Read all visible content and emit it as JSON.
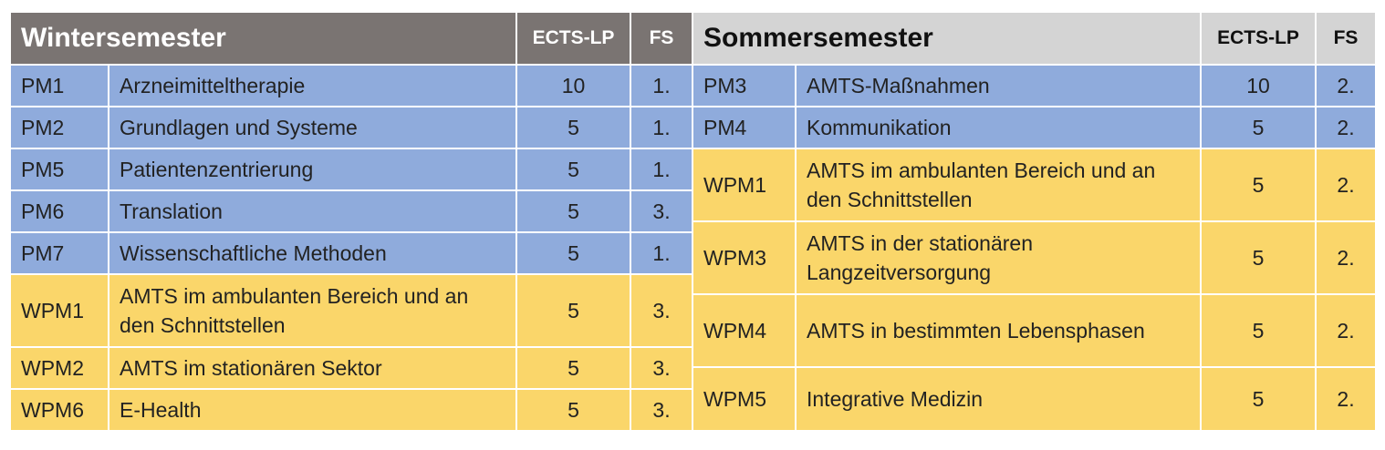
{
  "winter": {
    "title": "Wintersemester",
    "col_ects": "ECTS-LP",
    "col_fs": "FS",
    "rows": [
      {
        "code": "PM1",
        "name": "Arzneimitteltherapie",
        "ects": "10",
        "fs": "1.",
        "kind": "pm"
      },
      {
        "code": "PM2",
        "name": "Grundlagen und Systeme",
        "ects": "5",
        "fs": "1.",
        "kind": "pm"
      },
      {
        "code": "PM5",
        "name": "Patientenzentrierung",
        "ects": "5",
        "fs": "1.",
        "kind": "pm"
      },
      {
        "code": "PM6",
        "name": "Translation",
        "ects": "5",
        "fs": "3.",
        "kind": "pm"
      },
      {
        "code": "PM7",
        "name": "Wissenschaftliche Methoden",
        "ects": "5",
        "fs": "1.",
        "kind": "pm"
      },
      {
        "code": "WPM1",
        "name": "AMTS im ambulanten Bereich und an den Schnittstellen",
        "ects": "5",
        "fs": "3.",
        "kind": "wpm"
      },
      {
        "code": "WPM2",
        "name": "AMTS im stationären Sektor",
        "ects": "5",
        "fs": "3.",
        "kind": "wpm"
      },
      {
        "code": "WPM6",
        "name": "E-Health",
        "ects": "5",
        "fs": "3.",
        "kind": "wpm"
      }
    ]
  },
  "summer": {
    "title": "Sommersemester",
    "col_ects": "ECTS-LP",
    "col_fs": "FS",
    "rows": [
      {
        "code": "PM3",
        "name": "AMTS-Maßnahmen",
        "ects": "10",
        "fs": "2.",
        "kind": "pm"
      },
      {
        "code": "PM4",
        "name": "Kommunikation",
        "ects": "5",
        "fs": "2.",
        "kind": "pm"
      },
      {
        "code": "WPM1",
        "name": "AMTS im ambulanten Bereich und an den Schnittstellen",
        "ects": "5",
        "fs": "2.",
        "kind": "wpm"
      },
      {
        "code": "WPM3",
        "name": "AMTS in der stationären Langzeitversorgung",
        "ects": "5",
        "fs": "2.",
        "kind": "wpm"
      },
      {
        "code": "WPM4",
        "name": "AMTS in bestimmten Lebensphasen",
        "ects": "5",
        "fs": "2.",
        "kind": "wpm"
      },
      {
        "code": "WPM5",
        "name": "Integrative Medizin",
        "ects": "5",
        "fs": "2.",
        "kind": "wpm"
      }
    ]
  },
  "colors": {
    "pm": "#8fabdc",
    "wpm": "#fad66a",
    "winter_header": "#7a7472",
    "summer_header": "#d4d4d4"
  }
}
